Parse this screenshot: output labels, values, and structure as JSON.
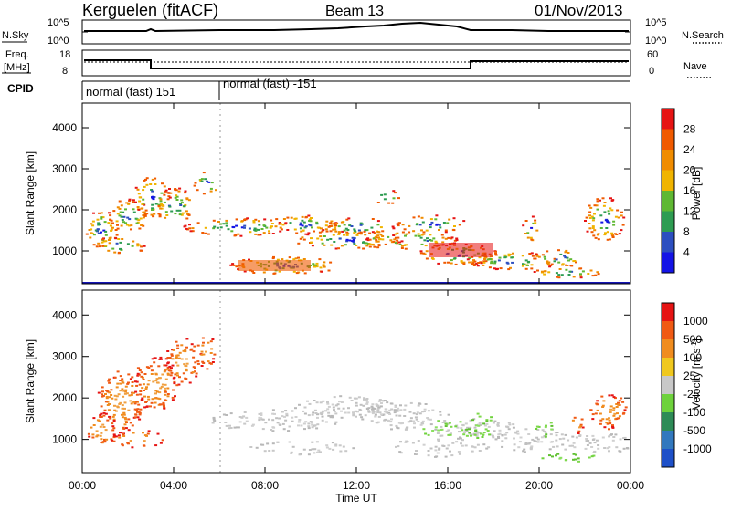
{
  "header": {
    "station": "Kerguelen (fitACF)",
    "beam": "Beam 13",
    "date": "01/Nov/2013"
  },
  "noise_panel": {
    "left_label": "N.Sky",
    "right_label": "N.Search",
    "left_top": "10^5",
    "left_bottom": "10^0",
    "right_top": "10^5",
    "right_bottom": "10^0"
  },
  "freq_panel": {
    "left_label_1": "Freq.",
    "left_label_2": "[MHz]",
    "right_label": "Nave",
    "left_top": "18",
    "left_bottom": "8",
    "right_top": "60",
    "right_bottom": "0"
  },
  "cpid": {
    "label": "CPID",
    "segments": [
      "normal (fast) 151",
      "normal (fast) -151"
    ]
  },
  "chart_data": [
    {
      "type": "heatmap",
      "name_shown": "",
      "ylabel": "Slant Range [km]",
      "yticks": [
        "1000",
        "2000",
        "3000",
        "4000"
      ],
      "colorbar": {
        "label": "Power [dB]",
        "ticks": [
          "4",
          "8",
          "12",
          "16",
          "20",
          "24",
          "28"
        ],
        "colors": [
          "#1414e6",
          "#2d4fc0",
          "#2e9c52",
          "#5fb833",
          "#f0b400",
          "#f08c00",
          "#f05a00",
          "#e61414"
        ]
      }
    },
    {
      "type": "heatmap",
      "ylabel": "Slant Range [km]",
      "yticks": [
        "1000",
        "2000",
        "3000",
        "4000"
      ],
      "colorbar": {
        "label": "Velocity [m s-1]",
        "ticks": [
          "1000",
          "500",
          "100",
          "25",
          "-25",
          "-100",
          "-500",
          "-1000"
        ],
        "colors": [
          "#1e50c8",
          "#3278be",
          "#2e8b57",
          "#6ed23c",
          "#c8c8c8",
          "#f0c81e",
          "#f08c1e",
          "#f05a14",
          "#e61414"
        ]
      }
    }
  ],
  "x_axis": {
    "ticks": [
      "00:00",
      "04:00",
      "08:00",
      "12:00",
      "16:00",
      "20:00",
      "00:00"
    ],
    "label": "Time UT"
  }
}
